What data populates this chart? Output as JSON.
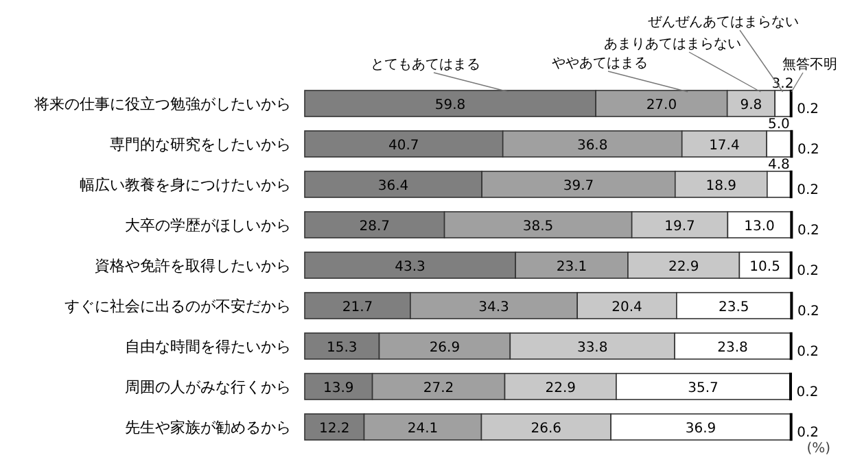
{
  "chart_data": {
    "type": "bar",
    "orientation": "horizontal",
    "stacked": true,
    "legend": "top",
    "categories": [
      "将来の仕事に役立つ勉強がしたいから",
      "専門的な研究をしたいから",
      "幅広い教養を身につけたいから",
      "大卒の学歴がほしいから",
      "資格や免許を取得したいから",
      "すぐに社会に出るのが不安だから",
      "自由な時間を得たいから",
      "周囲の人がみな行くから",
      "先生や家族が勧めるから"
    ],
    "series": [
      {
        "name": "とてもあてはまる",
        "color": "#7f7f7f",
        "values": [
          59.8,
          40.7,
          36.4,
          28.7,
          43.3,
          21.7,
          15.3,
          13.9,
          12.2
        ],
        "value_labels": [
          "59.8",
          "40.7",
          "36.4",
          "28.7",
          "43.3",
          "21.7",
          "15.3",
          "13.9",
          "12.2"
        ]
      },
      {
        "name": "ややあてはまる",
        "color": "#a0a0a0",
        "values": [
          27.0,
          36.8,
          39.7,
          38.5,
          23.1,
          34.3,
          26.9,
          27.2,
          24.1
        ],
        "value_labels": [
          "27.0",
          "36.8",
          "39.7",
          "38.5",
          "23.1",
          "34.3",
          "26.9",
          "27.2",
          "24.1"
        ]
      },
      {
        "name": "あまりあてはまらない",
        "color": "#c8c8c8",
        "values": [
          9.8,
          17.4,
          18.9,
          19.7,
          22.9,
          20.4,
          33.8,
          22.9,
          26.6
        ],
        "value_labels": [
          "9.8",
          "17.4",
          "18.9",
          "19.7",
          "22.9",
          "20.4",
          "33.8",
          "22.9",
          "26.6"
        ]
      },
      {
        "name": "ぜんぜんあてはまらない",
        "color": "#ffffff",
        "values": [
          3.2,
          5.0,
          4.8,
          13.0,
          10.5,
          23.5,
          23.8,
          35.7,
          36.9
        ],
        "value_labels": [
          "3.2",
          "5.0",
          "4.8",
          "13.0",
          "10.5",
          "23.5",
          "23.8",
          "35.7",
          "36.9"
        ]
      },
      {
        "name": "無答不明",
        "color": "#000000",
        "values": [
          0.2,
          0.2,
          0.2,
          0.2,
          0.2,
          0.2,
          0.2,
          0.2,
          0.2
        ],
        "value_labels": [
          "0.2",
          "0.2",
          "0.2",
          "0.2",
          "0.2",
          "0.2",
          "0.2",
          "0.2",
          "0.2"
        ]
      }
    ],
    "annotations": [
      "(%)"
    ]
  }
}
